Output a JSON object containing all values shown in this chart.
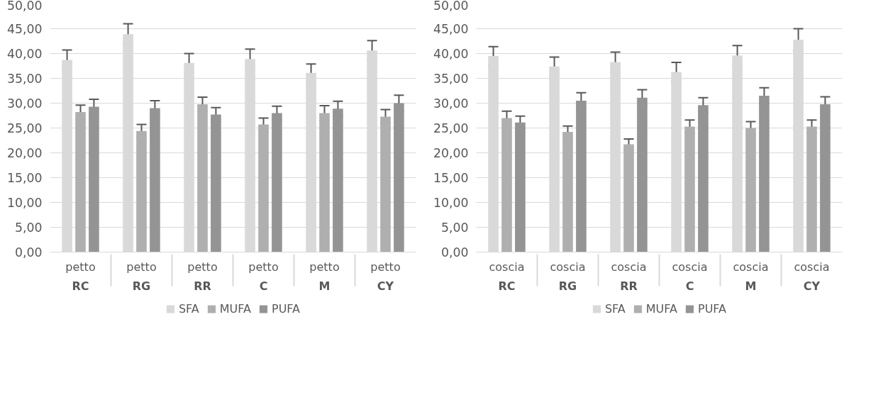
{
  "chart_data": [
    {
      "type": "bar",
      "categories": [
        "petto\nRC",
        "petto\nRG",
        "petto\nRR",
        "petto\nC",
        "petto\nM",
        "petto\nCY"
      ],
      "series": [
        {
          "name": "SFA",
          "color": "#d9d9d9",
          "values": [
            38.7,
            43.9,
            38.1,
            38.9,
            36.1,
            40.6
          ],
          "errors": [
            2.0,
            2.1,
            1.9,
            2.0,
            1.8,
            2.0
          ]
        },
        {
          "name": "MUFA",
          "color": "#afafaf",
          "values": [
            28.2,
            24.4,
            29.8,
            25.7,
            28.0,
            27.3
          ],
          "errors": [
            1.4,
            1.3,
            1.4,
            1.3,
            1.5,
            1.4
          ]
        },
        {
          "name": "PUFA",
          "color": "#949494",
          "values": [
            29.3,
            29.0,
            27.7,
            28.0,
            28.9,
            30.0
          ],
          "errors": [
            1.5,
            1.5,
            1.4,
            1.4,
            1.5,
            1.6
          ]
        }
      ],
      "ylim": [
        0,
        50
      ],
      "yticks": [
        {
          "value": 0,
          "label": "0,00"
        },
        {
          "value": 5,
          "label": "5,00"
        },
        {
          "value": 10,
          "label": "10,00"
        },
        {
          "value": 15,
          "label": "15,00"
        },
        {
          "value": 20,
          "label": "20,00"
        },
        {
          "value": 25,
          "label": "25,00"
        },
        {
          "value": 30,
          "label": "30,00"
        },
        {
          "value": 35,
          "label": "35,00"
        },
        {
          "value": 40,
          "label": "40,00"
        },
        {
          "value": 45,
          "label": "45,00"
        },
        {
          "value": 50,
          "label": "50,00"
        }
      ],
      "grid": "y",
      "legend": "bottom"
    },
    {
      "type": "bar",
      "categories": [
        "coscia\nRC",
        "coscia\nRG",
        "coscia\nRR",
        "coscia\nC",
        "coscia\nM",
        "coscia\nCY"
      ],
      "series": [
        {
          "name": "SFA",
          "color": "#d9d9d9",
          "values": [
            39.5,
            37.4,
            38.3,
            36.3,
            39.6,
            42.8
          ],
          "errors": [
            1.9,
            1.9,
            2.0,
            1.9,
            2.0,
            2.2
          ]
        },
        {
          "name": "MUFA",
          "color": "#afafaf",
          "values": [
            27.0,
            24.2,
            21.7,
            25.3,
            25.0,
            25.3
          ],
          "errors": [
            1.4,
            1.2,
            1.1,
            1.3,
            1.3,
            1.3
          ]
        },
        {
          "name": "PUFA",
          "color": "#949494",
          "values": [
            26.1,
            30.5,
            31.1,
            29.6,
            31.5,
            29.8
          ],
          "errors": [
            1.3,
            1.6,
            1.6,
            1.5,
            1.6,
            1.5
          ]
        }
      ],
      "ylim": [
        0,
        50
      ],
      "yticks": [
        {
          "value": 0,
          "label": "0,00"
        },
        {
          "value": 5,
          "label": "5,00"
        },
        {
          "value": 10,
          "label": "10,00"
        },
        {
          "value": 15,
          "label": "15,00"
        },
        {
          "value": 20,
          "label": "20,00"
        },
        {
          "value": 25,
          "label": "25,00"
        },
        {
          "value": 30,
          "label": "30,00"
        },
        {
          "value": 35,
          "label": "35,00"
        },
        {
          "value": 40,
          "label": "40,00"
        },
        {
          "value": 45,
          "label": "45,00"
        },
        {
          "value": 50,
          "label": "50,00"
        }
      ],
      "grid": "y",
      "legend": "bottom"
    }
  ]
}
